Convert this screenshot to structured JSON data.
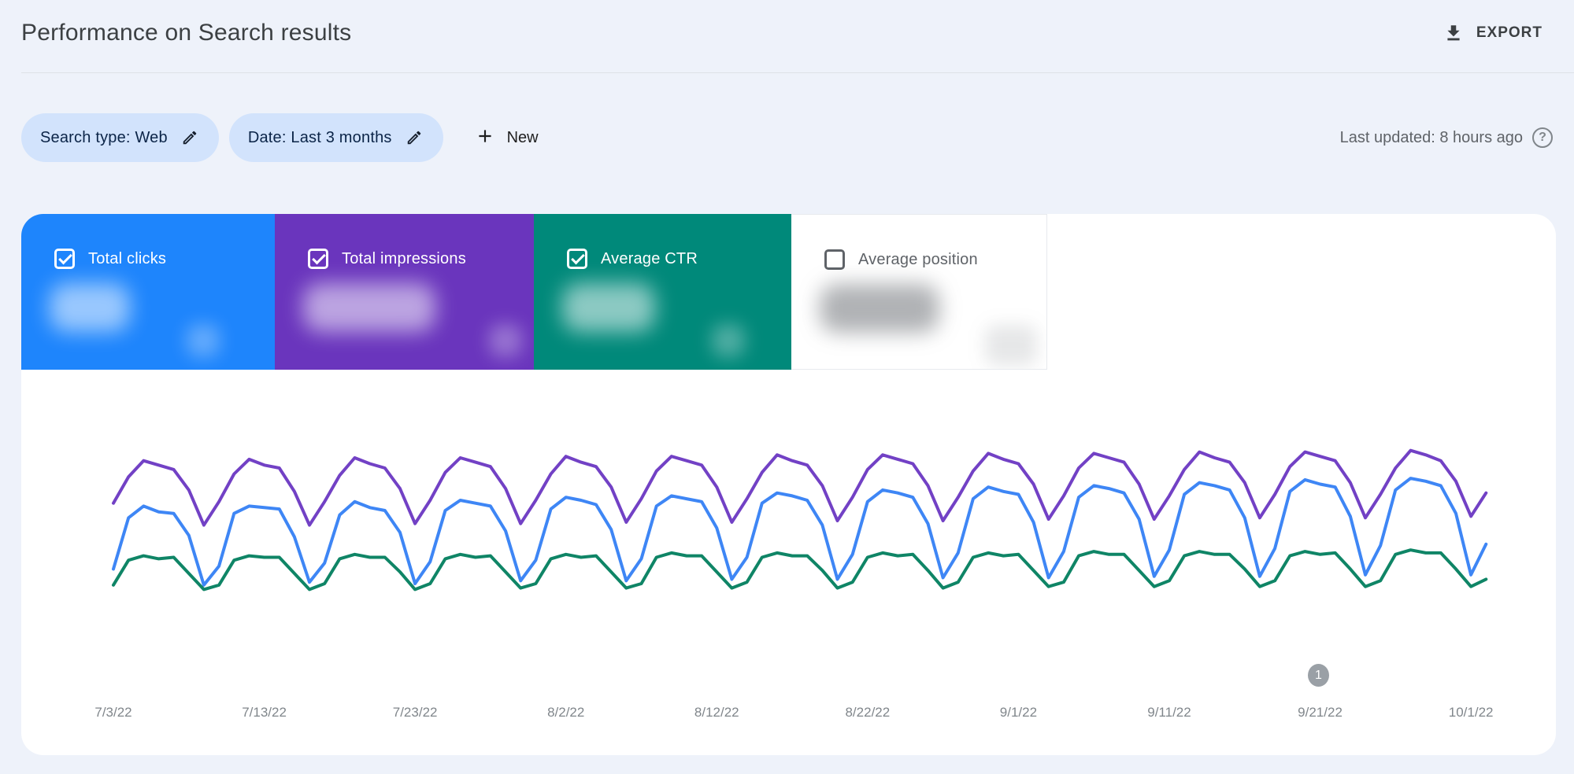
{
  "header": {
    "title": "Performance on Search results",
    "export_label": "EXPORT"
  },
  "filters": {
    "chips": [
      {
        "label": "Search type: Web"
      },
      {
        "label": "Date: Last 3 months"
      }
    ],
    "new_label": "New",
    "last_updated": "Last updated: 8 hours ago"
  },
  "colors": {
    "page_bg": "#eef2fa",
    "chip_bg": "#d2e3fc",
    "card_clicks": "#1e85fc",
    "card_impressions": "#6a35bd",
    "card_ctr": "#00897a",
    "card_position_bg": "#ffffff",
    "line_clicks": "#3e86f5",
    "line_impressions": "#7241c5",
    "line_ctr": "#0f8566",
    "annotation_badge": "#9aa0a6"
  },
  "metrics": {
    "cards": [
      {
        "key": "clicks",
        "label": "Total clicks",
        "checked": true,
        "color": "#1e85fc",
        "value_redacted": true
      },
      {
        "key": "impressions",
        "label": "Total impressions",
        "checked": true,
        "color": "#6a35bd",
        "value_redacted": true
      },
      {
        "key": "ctr",
        "label": "Average CTR",
        "checked": true,
        "color": "#00897a",
        "value_redacted": true
      },
      {
        "key": "position",
        "label": "Average position",
        "checked": false,
        "color": null,
        "value_redacted": true
      }
    ]
  },
  "chart_data": {
    "type": "line",
    "title": "",
    "xlabel": "",
    "ylabel": "",
    "grid": false,
    "legend_position": "metric-cards-above",
    "x_range": [
      "7/3/22",
      "10/2/22"
    ],
    "x_tick_labels": [
      "7/3/22",
      "7/13/22",
      "7/23/22",
      "8/2/22",
      "8/12/22",
      "8/22/22",
      "9/1/22",
      "9/11/22",
      "9/21/22",
      "10/1/22"
    ],
    "y_units": "relative scale 0-100 (actual axis values blurred/redacted in screenshot)",
    "ylim": [
      0,
      105
    ],
    "annotation": {
      "label": "1",
      "x_label": "9/21/22"
    },
    "series": [
      {
        "key": "impressions",
        "name": "Total impressions",
        "color": "#7241c5",
        "values": [
          62,
          80,
          91,
          88,
          85,
          71,
          47,
          63,
          82,
          92,
          88,
          86,
          70,
          47,
          63,
          81,
          93,
          89,
          86,
          72,
          48,
          64,
          83,
          93,
          90,
          87,
          72,
          48,
          64,
          82,
          94,
          90,
          87,
          73,
          49,
          65,
          84,
          94,
          91,
          88,
          73,
          49,
          65,
          83,
          95,
          91,
          88,
          74,
          50,
          66,
          85,
          95,
          92,
          89,
          74,
          50,
          66,
          84,
          96,
          92,
          89,
          75,
          51,
          67,
          86,
          96,
          93,
          90,
          75,
          51,
          67,
          85,
          97,
          93,
          90,
          76,
          52,
          68,
          87,
          97,
          94,
          91,
          76,
          52,
          68,
          86,
          98,
          95,
          91,
          77,
          53,
          69
        ]
      },
      {
        "key": "clicks",
        "name": "Total clicks",
        "color": "#3e86f5",
        "values": [
          17,
          52,
          60,
          56,
          55,
          40,
          6,
          19,
          55,
          60,
          59,
          58,
          39,
          8,
          21,
          54,
          63,
          59,
          57,
          42,
          7,
          22,
          57,
          64,
          62,
          60,
          43,
          9,
          23,
          58,
          66,
          64,
          61,
          44,
          9,
          24,
          60,
          67,
          65,
          63,
          45,
          10,
          25,
          62,
          69,
          67,
          64,
          47,
          10,
          27,
          63,
          71,
          69,
          66,
          48,
          11,
          28,
          65,
          73,
          70,
          68,
          49,
          11,
          29,
          66,
          74,
          72,
          69,
          51,
          12,
          30,
          68,
          76,
          74,
          71,
          52,
          12,
          31,
          70,
          78,
          75,
          73,
          53,
          13,
          33,
          71,
          79,
          77,
          74,
          55,
          13,
          34
        ]
      },
      {
        "key": "ctr",
        "name": "Average CTR",
        "color": "#0f8566",
        "values": [
          6,
          23,
          26,
          24,
          25,
          14,
          3,
          6,
          23,
          26,
          25,
          25,
          14,
          3,
          7,
          24,
          27,
          25,
          25,
          15,
          3,
          7,
          24,
          27,
          25,
          26,
          15,
          4,
          7,
          24,
          27,
          25,
          26,
          15,
          4,
          7,
          25,
          28,
          26,
          26,
          15,
          4,
          8,
          25,
          28,
          26,
          26,
          16,
          4,
          8,
          25,
          28,
          26,
          27,
          16,
          4,
          8,
          25,
          28,
          26,
          27,
          16,
          5,
          8,
          26,
          29,
          27,
          27,
          16,
          5,
          9,
          26,
          29,
          27,
          27,
          17,
          5,
          9,
          26,
          29,
          27,
          28,
          17,
          5,
          9,
          27,
          30,
          28,
          28,
          17,
          5,
          10
        ]
      }
    ]
  }
}
